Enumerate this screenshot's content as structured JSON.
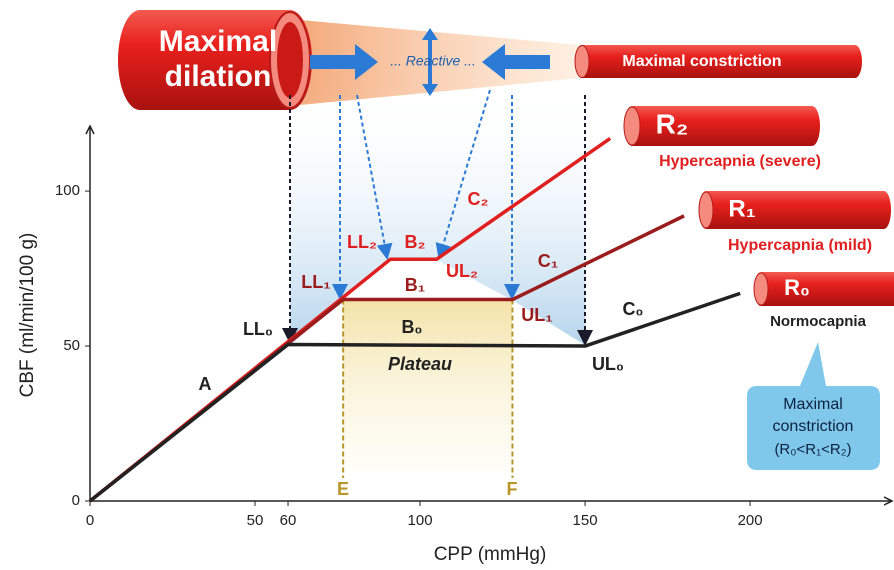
{
  "chart_data": {
    "type": "line",
    "x_label": "CPP (mmHg)",
    "y_label": "CBF (ml/min/100 g)",
    "xlim": [
      0,
      243
    ],
    "ylim": [
      0,
      121
    ],
    "xticks": [
      0,
      50,
      60,
      100,
      150,
      200
    ],
    "yticks": [
      0,
      50,
      100
    ],
    "series": [
      {
        "name": "Normocapnia",
        "label": "R₀",
        "color": "#222222",
        "x": [
          0,
          60,
          150,
          197
        ],
        "values": [
          0,
          50.5,
          50,
          67
        ]
      },
      {
        "name": "Hypercapnia (mild)",
        "label": "R₁",
        "color": "#9b1c1c",
        "x": [
          0,
          76.7,
          128,
          180
        ],
        "values": [
          0,
          65,
          65,
          92
        ]
      },
      {
        "name": "Hypercapnia (severe)",
        "label": "R₂",
        "color": "#e02020",
        "x": [
          0,
          91,
          105,
          157.6
        ],
        "values": [
          0,
          78,
          78,
          117
        ]
      }
    ],
    "annotations": [
      "A",
      "LL₀",
      "B₀",
      "Plateau",
      "UL₀",
      "C₀",
      "LL₁",
      "B₁",
      "UL₁",
      "C₁",
      "LL₂",
      "B₂",
      "UL₂",
      "C₂",
      "E",
      "F"
    ]
  },
  "top_banner": {
    "dilation": [
      "Maximal",
      "dilation"
    ],
    "reactive": "... Reactive ...",
    "constriction": "Maximal constriction"
  },
  "callout": [
    "Maximal",
    "constriction",
    "(R₀<R₁<R₂)"
  ]
}
